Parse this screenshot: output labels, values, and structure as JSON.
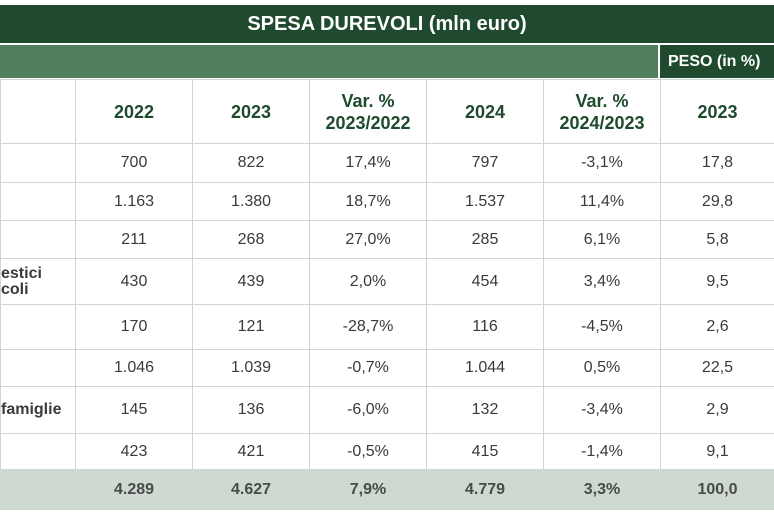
{
  "title": "SPESA DUREVOLI (mln euro)",
  "peso_header": "PESO (in %)",
  "columns": [
    "2022",
    "2023",
    "Var. % 2023/2022",
    "2024",
    "Var. % 2024/2023",
    "2023"
  ],
  "rows": [
    {
      "label": "",
      "cells": [
        "700",
        "822",
        "17,4%",
        "797",
        "-3,1%",
        "17,8"
      ]
    },
    {
      "label": "",
      "cells": [
        "1.163",
        "1.380",
        "18,7%",
        "1.537",
        "11,4%",
        "29,8"
      ]
    },
    {
      "label": "",
      "cells": [
        "211",
        "268",
        "27,0%",
        "285",
        "6,1%",
        "5,8"
      ]
    },
    {
      "label": "estici\ncoli",
      "cells": [
        "430",
        "439",
        "2,0%",
        "454",
        "3,4%",
        "9,5"
      ]
    },
    {
      "label": "",
      "cells": [
        "170",
        "121",
        "-28,7%",
        "116",
        "-4,5%",
        "2,6"
      ]
    },
    {
      "label": "",
      "cells": [
        "1.046",
        "1.039",
        "-0,7%",
        "1.044",
        "0,5%",
        "22,5"
      ]
    },
    {
      "label": "famiglie",
      "cells": [
        "145",
        "136",
        "-6,0%",
        "132",
        "-3,4%",
        "2,9"
      ]
    },
    {
      "label": "",
      "cells": [
        "423",
        "421",
        "-0,5%",
        "415",
        "-1,4%",
        "9,1"
      ]
    }
  ],
  "total": {
    "label": "",
    "cells": [
      "4.289",
      "4.627",
      "7,9%",
      "4.779",
      "3,3%",
      "100,0"
    ]
  },
  "colors": {
    "dark_green": "#1f4a2e",
    "mid_green": "#4f7f5c",
    "total_bg": "#cdd9d1"
  }
}
